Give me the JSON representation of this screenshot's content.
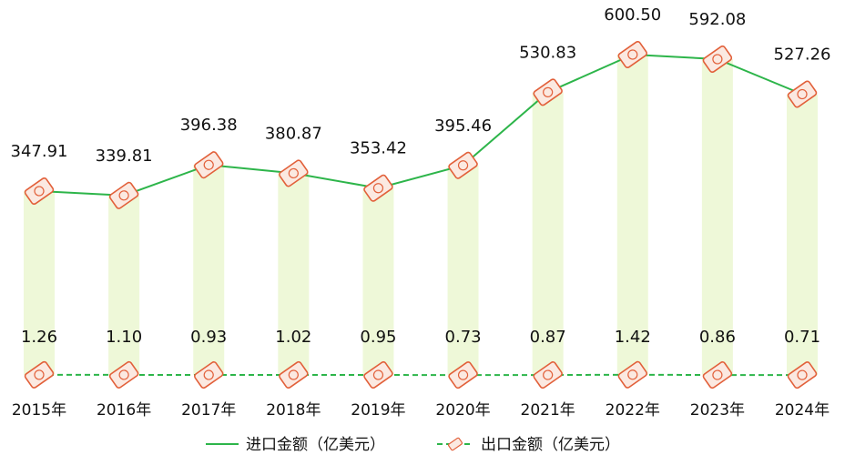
{
  "chart_data": {
    "type": "line",
    "categories": [
      "2015年",
      "2016年",
      "2017年",
      "2018年",
      "2019年",
      "2020年",
      "2021年",
      "2022年",
      "2023年",
      "2024年"
    ],
    "series": [
      {
        "name": "进口金额（亿美元）",
        "values": [
          347.91,
          339.81,
          396.38,
          380.87,
          353.42,
          395.46,
          530.83,
          600.5,
          592.08,
          527.26
        ],
        "labels": [
          "347.91",
          "339.81",
          "396.38",
          "380.87",
          "353.42",
          "395.46",
          "530.83",
          "600.50",
          "592.08",
          "527.26"
        ],
        "color": "#2db54a",
        "style": "solid"
      },
      {
        "name": "出口金额（亿美元）",
        "values": [
          1.26,
          1.1,
          0.93,
          1.02,
          0.95,
          0.73,
          0.87,
          1.42,
          0.86,
          0.71
        ],
        "labels": [
          "1.26",
          "1.10",
          "0.93",
          "1.02",
          "0.95",
          "0.73",
          "0.87",
          "1.42",
          "0.86",
          "0.71"
        ],
        "color": "#2db54a",
        "style": "dashed"
      }
    ],
    "grid": false,
    "legend_position": "bottom-center"
  },
  "colors": {
    "line": "#2db54a",
    "bar_fill": "#eef8d8",
    "marker_stroke": "#e2603a",
    "marker_fill": "#fbe9e1"
  }
}
